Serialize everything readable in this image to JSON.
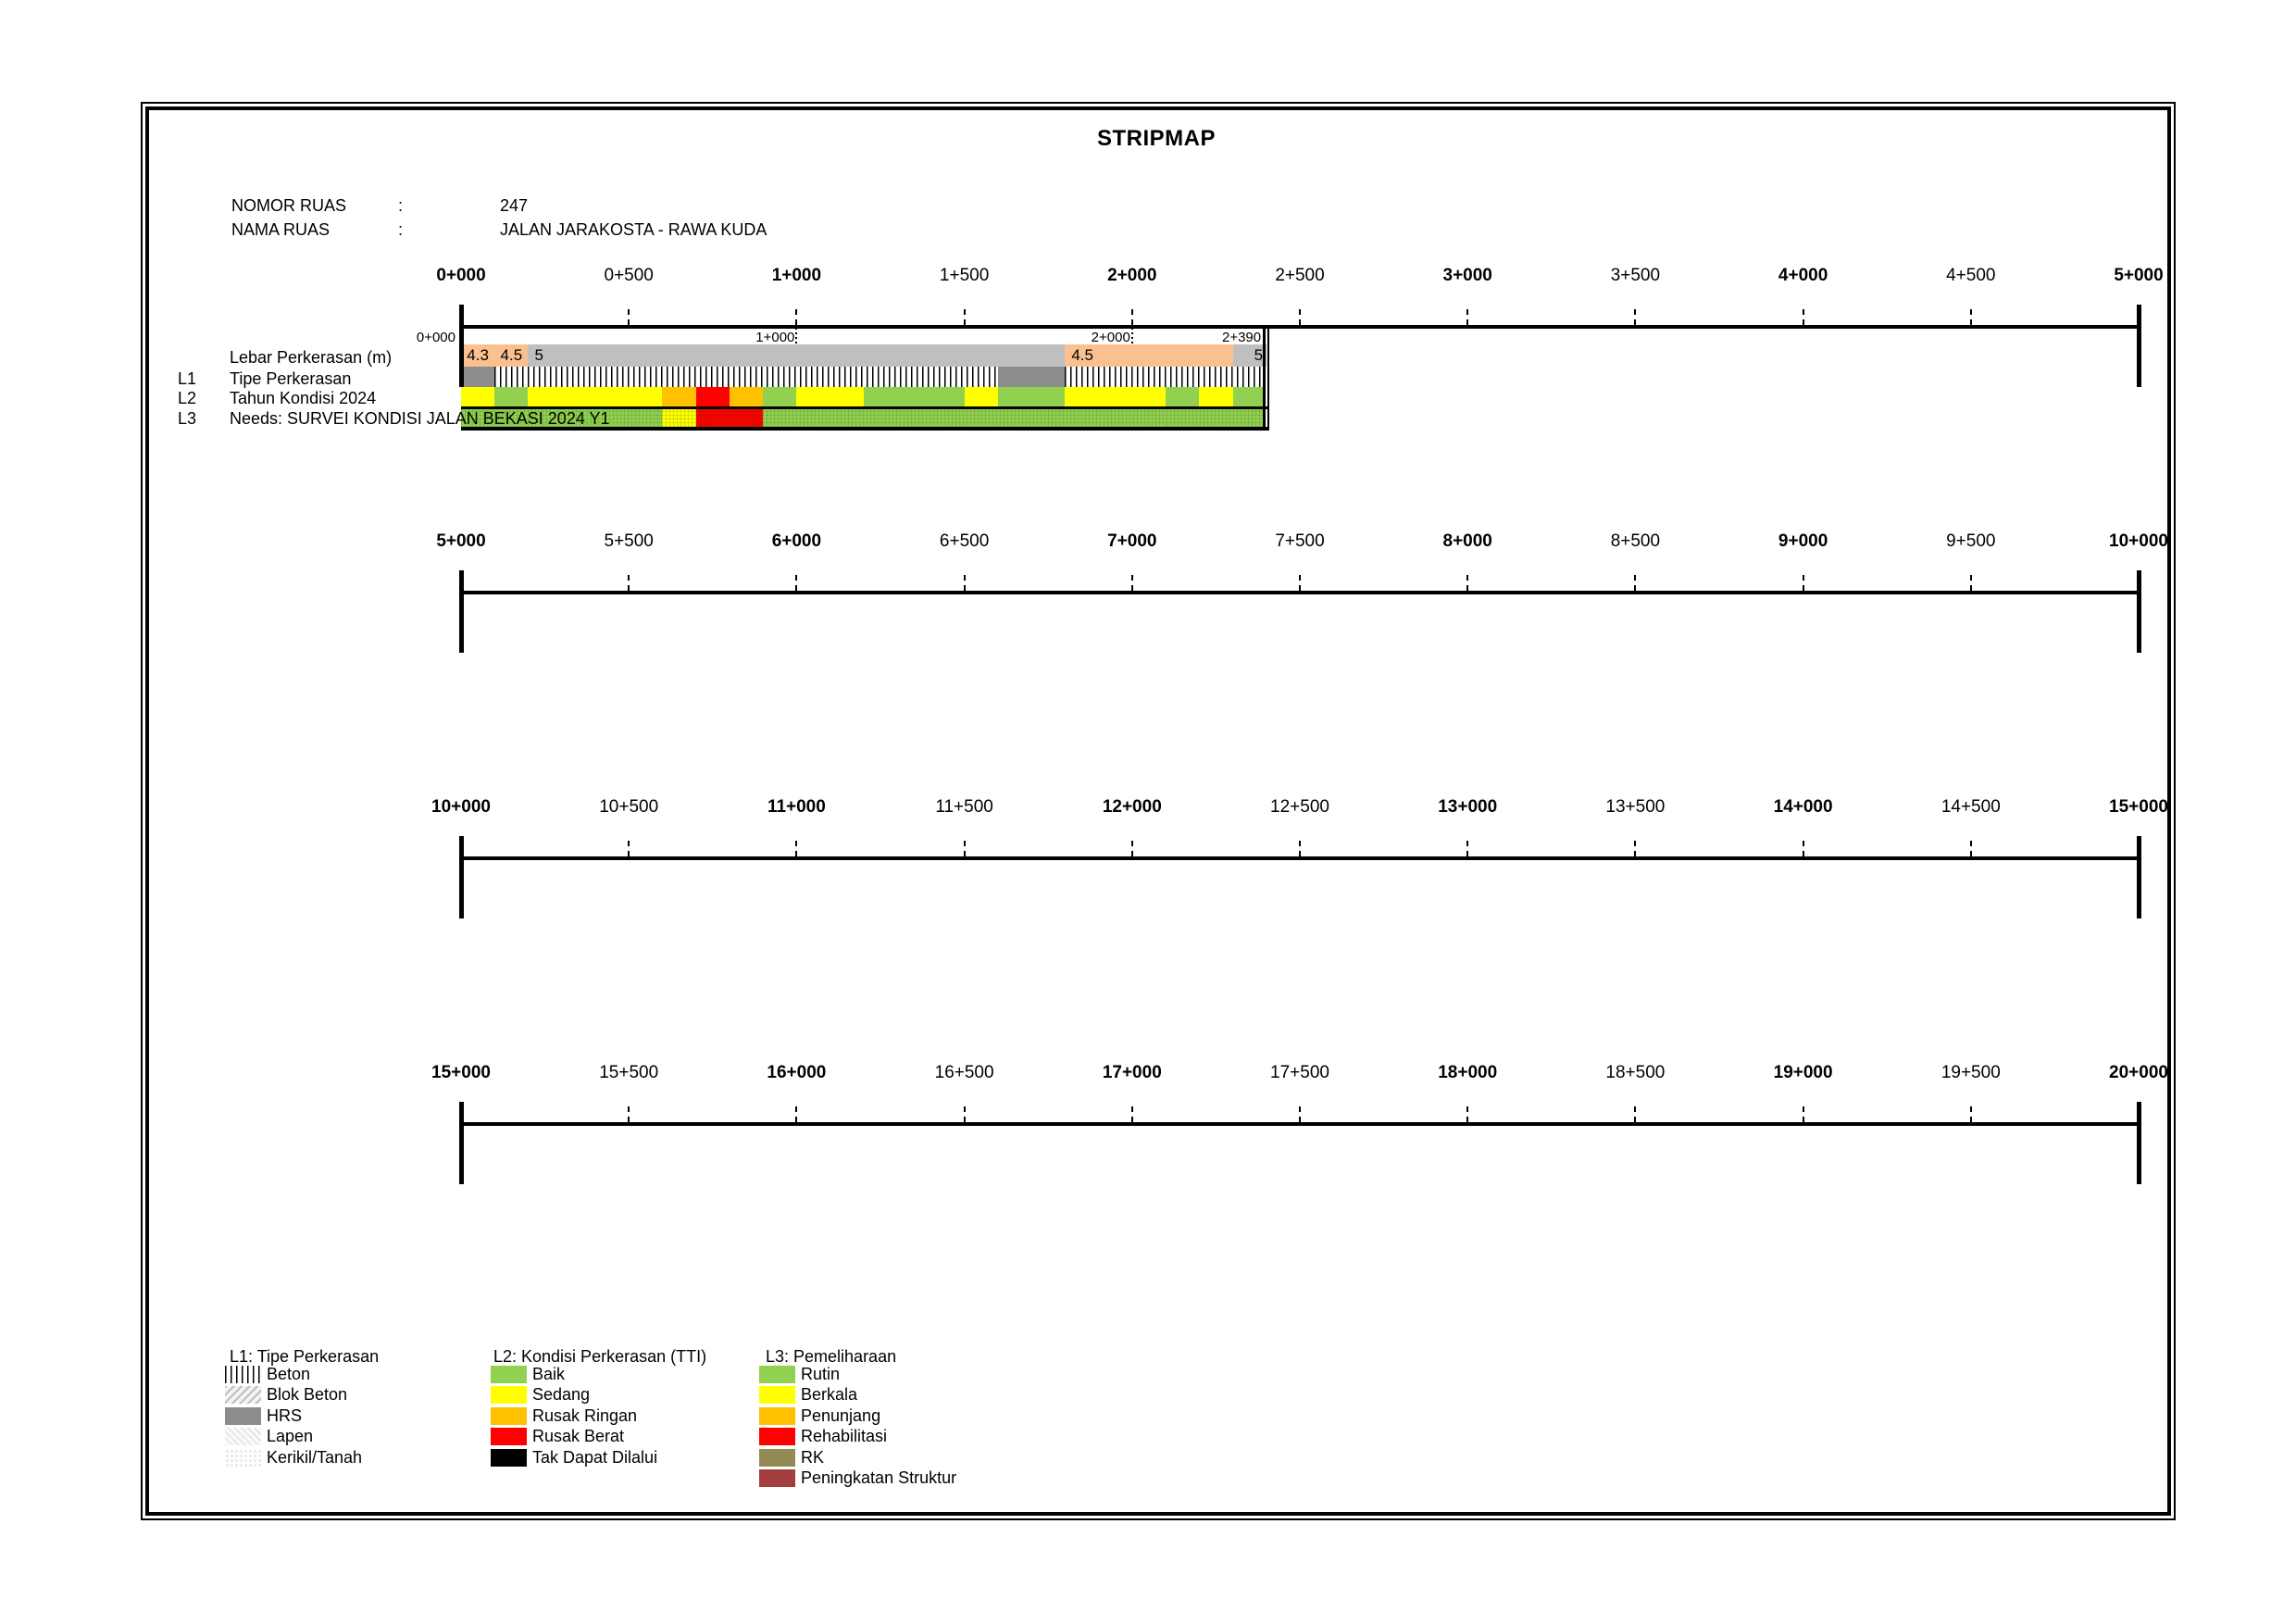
{
  "title": "STRIPMAP",
  "header": {
    "nomor_ruas_label": "NOMOR RUAS",
    "nomor_ruas_sep": ":",
    "nomor_ruas_value": "247",
    "nama_ruas_label": "NAMA RUAS",
    "nama_ruas_sep": ":",
    "nama_ruas_value": "JALAN JARAKOSTA - RAWA KUDA"
  },
  "strip": {
    "lebar_label": "Lebar Perkerasan (m)",
    "l1_tag": "L1",
    "l1_label": "Tipe Perkerasan",
    "l2_tag": "L2",
    "l2_label": "Tahun Kondisi 2024",
    "l3_tag": "L3",
    "l3_label": "Needs: SURVEI KONDISI JALAN BEKASI 2024 Y1",
    "mini_labels": [
      {
        "text": "0+000",
        "at_m": 0,
        "outside_left": true,
        "dotted_line": false
      },
      {
        "text": "1+000",
        "at_m": 1000,
        "outside_left": false,
        "dotted_line": true
      },
      {
        "text": "2+000",
        "at_m": 2000,
        "outside_left": false,
        "dotted_line": true
      },
      {
        "text": "2+390",
        "at_m": 2390,
        "outside_left": false,
        "dotted_line": false
      }
    ]
  },
  "chart_data": {
    "type": "heatmap",
    "title": "STRIPMAP",
    "x_unit": "chainage_m",
    "x_range_m": [
      0,
      20000
    ],
    "tick_interval_m": 500,
    "surveyed_to_m": 2390,
    "rulers": [
      {
        "from_m": 0,
        "to_m": 5000,
        "tick_labels": [
          {
            "text": "0+000",
            "bold": true
          },
          {
            "text": "0+500",
            "bold": false
          },
          {
            "text": "1+000",
            "bold": true
          },
          {
            "text": "1+500",
            "bold": false
          },
          {
            "text": "2+000",
            "bold": true
          },
          {
            "text": "2+500",
            "bold": false
          },
          {
            "text": "3+000",
            "bold": true
          },
          {
            "text": "3+500",
            "bold": false
          },
          {
            "text": "4+000",
            "bold": true
          },
          {
            "text": "4+500",
            "bold": false
          },
          {
            "text": "5+000",
            "bold": true
          }
        ]
      },
      {
        "from_m": 5000,
        "to_m": 10000,
        "tick_labels": [
          {
            "text": "5+000",
            "bold": true
          },
          {
            "text": "5+500",
            "bold": false
          },
          {
            "text": "6+000",
            "bold": true
          },
          {
            "text": "6+500",
            "bold": false
          },
          {
            "text": "7+000",
            "bold": true
          },
          {
            "text": "7+500",
            "bold": false
          },
          {
            "text": "8+000",
            "bold": true
          },
          {
            "text": "8+500",
            "bold": false
          },
          {
            "text": "9+000",
            "bold": true
          },
          {
            "text": "9+500",
            "bold": false
          },
          {
            "text": "10+000",
            "bold": true
          }
        ]
      },
      {
        "from_m": 10000,
        "to_m": 15000,
        "tick_labels": [
          {
            "text": "10+000",
            "bold": true
          },
          {
            "text": "10+500",
            "bold": false
          },
          {
            "text": "11+000",
            "bold": true
          },
          {
            "text": "11+500",
            "bold": false
          },
          {
            "text": "12+000",
            "bold": true
          },
          {
            "text": "12+500",
            "bold": false
          },
          {
            "text": "13+000",
            "bold": true
          },
          {
            "text": "13+500",
            "bold": false
          },
          {
            "text": "14+000",
            "bold": true
          },
          {
            "text": "14+500",
            "bold": false
          },
          {
            "text": "15+000",
            "bold": true
          }
        ]
      },
      {
        "from_m": 15000,
        "to_m": 20000,
        "tick_labels": [
          {
            "text": "15+000",
            "bold": true
          },
          {
            "text": "15+500",
            "bold": false
          },
          {
            "text": "16+000",
            "bold": true
          },
          {
            "text": "16+500",
            "bold": false
          },
          {
            "text": "17+000",
            "bold": true
          },
          {
            "text": "17+500",
            "bold": false
          },
          {
            "text": "18+000",
            "bold": true
          },
          {
            "text": "18+500",
            "bold": false
          },
          {
            "text": "19+000",
            "bold": true
          },
          {
            "text": "19+500",
            "bold": false
          },
          {
            "text": "20+000",
            "bold": true
          }
        ]
      }
    ],
    "rows": {
      "lebar": {
        "name": "Lebar Perkerasan (m)",
        "segments": [
          {
            "from_m": 0,
            "to_m": 100,
            "value": "4.3",
            "fill": "peach",
            "align": "center"
          },
          {
            "from_m": 100,
            "to_m": 200,
            "value": "4.5",
            "fill": "peach",
            "align": "center"
          },
          {
            "from_m": 200,
            "to_m": 1800,
            "value": "5",
            "fill": "lebar_gray",
            "align": "left"
          },
          {
            "from_m": 1800,
            "to_m": 2300,
            "value": "4.5",
            "fill": "peach",
            "align": "left"
          },
          {
            "from_m": 2300,
            "to_m": 2390,
            "value": "5",
            "fill": "lebar_gray",
            "align": "right"
          }
        ]
      },
      "l1": {
        "name": "Tipe Perkerasan",
        "segments": [
          {
            "from_m": 0,
            "to_m": 100,
            "type": "hrs"
          },
          {
            "from_m": 100,
            "to_m": 1600,
            "type": "beton"
          },
          {
            "from_m": 1600,
            "to_m": 1800,
            "type": "hrs"
          },
          {
            "from_m": 1800,
            "to_m": 2390,
            "type": "beton"
          }
        ]
      },
      "l2": {
        "name": "Tahun Kondisi 2024",
        "segments": [
          {
            "from_m": 0,
            "to_m": 100,
            "cond": "sedang"
          },
          {
            "from_m": 100,
            "to_m": 200,
            "cond": "baik"
          },
          {
            "from_m": 200,
            "to_m": 600,
            "cond": "sedang"
          },
          {
            "from_m": 600,
            "to_m": 700,
            "cond": "rusak_ringan"
          },
          {
            "from_m": 700,
            "to_m": 800,
            "cond": "rusak_berat"
          },
          {
            "from_m": 800,
            "to_m": 900,
            "cond": "rusak_ringan"
          },
          {
            "from_m": 900,
            "to_m": 1000,
            "cond": "baik"
          },
          {
            "from_m": 1000,
            "to_m": 1200,
            "cond": "sedang"
          },
          {
            "from_m": 1200,
            "to_m": 1500,
            "cond": "baik"
          },
          {
            "from_m": 1500,
            "to_m": 1600,
            "cond": "sedang"
          },
          {
            "from_m": 1600,
            "to_m": 1800,
            "cond": "baik"
          },
          {
            "from_m": 1800,
            "to_m": 2100,
            "cond": "sedang"
          },
          {
            "from_m": 2100,
            "to_m": 2200,
            "cond": "baik"
          },
          {
            "from_m": 2200,
            "to_m": 2300,
            "cond": "sedang"
          },
          {
            "from_m": 2300,
            "to_m": 2390,
            "cond": "baik"
          }
        ]
      },
      "l3": {
        "name": "Needs: SURVEI KONDISI JALAN BEKASI 2024 Y1",
        "segments": [
          {
            "from_m": 0,
            "to_m": 600,
            "need": "rutin"
          },
          {
            "from_m": 600,
            "to_m": 700,
            "need": "berkala"
          },
          {
            "from_m": 700,
            "to_m": 900,
            "need": "rehabilitasi"
          },
          {
            "from_m": 900,
            "to_m": 2390,
            "need": "rutin"
          }
        ]
      }
    }
  },
  "legend": {
    "groups": [
      {
        "title": "L1: Tipe Perkerasan",
        "items": [
          {
            "label": "Beton",
            "swatch": "beton"
          },
          {
            "label": "Blok Beton",
            "swatch": "blok_beton"
          },
          {
            "label": "HRS",
            "swatch": "hrs"
          },
          {
            "label": "Lapen",
            "swatch": "lapen"
          },
          {
            "label": "Kerikil/Tanah",
            "swatch": "kerikil_tanah"
          }
        ]
      },
      {
        "title": "L2: Kondisi Perkerasan (TTI)",
        "items": [
          {
            "label": "Baik",
            "swatch": "baik"
          },
          {
            "label": "Sedang",
            "swatch": "sedang"
          },
          {
            "label": "Rusak Ringan",
            "swatch": "rusak_ringan"
          },
          {
            "label": "Rusak Berat",
            "swatch": "rusak_berat"
          },
          {
            "label": "Tak Dapat Dilalui",
            "swatch": "tak_dapat_dilalui"
          }
        ]
      },
      {
        "title": "L3: Pemeliharaan",
        "items": [
          {
            "label": "Rutin",
            "swatch": "rutin"
          },
          {
            "label": "Berkala",
            "swatch": "berkala"
          },
          {
            "label": "Penunjang",
            "swatch": "penunjang"
          },
          {
            "label": "Rehabilitasi",
            "swatch": "rehabilitasi"
          },
          {
            "label": "RK",
            "swatch": "rk"
          },
          {
            "label": "Peningkatan Struktur",
            "swatch": "peningkatan_struktur"
          }
        ]
      }
    ]
  },
  "colors": {
    "peach": "#FAC090",
    "lebar_gray": "#BFBFBF",
    "hrs": "#8C8C8C",
    "baik": "#92D050",
    "sedang": "#FFFF00",
    "rusak_ringan": "#FFC000",
    "rusak_berat": "#FF0000",
    "tak_dapat_dilalui": "#000000",
    "rutin": "#92D050",
    "berkala": "#FFFF00",
    "penunjang": "#FFC000",
    "rehabilitasi": "#FF0000",
    "rk": "#948A54",
    "peningkatan_struktur": "#A33E3E"
  }
}
